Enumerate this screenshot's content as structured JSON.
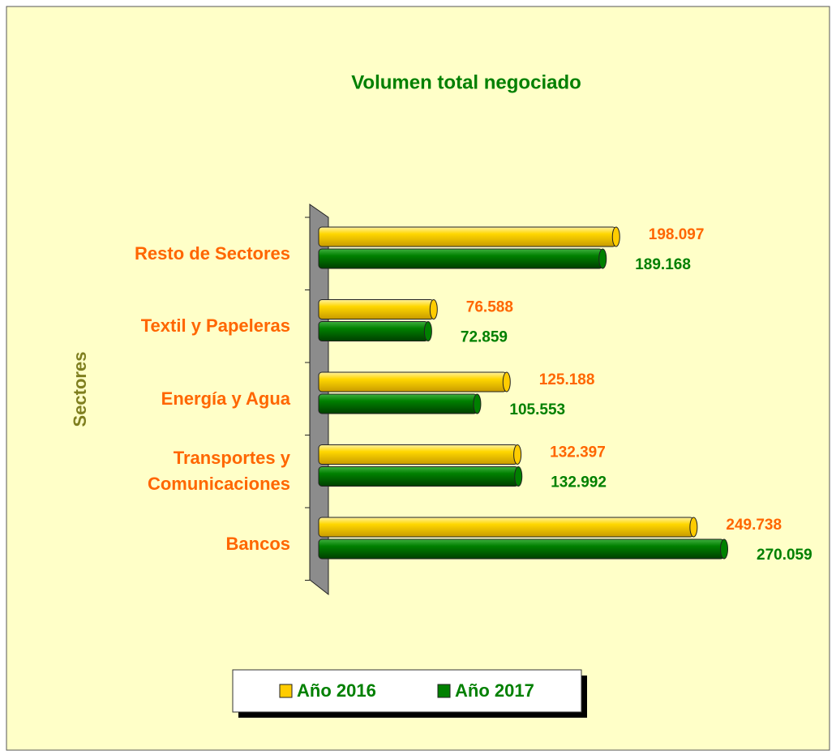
{
  "chart_data": {
    "type": "bar",
    "orientation": "horizontal",
    "title": "Volumen total negociado",
    "y_label": "Sectores",
    "categories": [
      "Resto de Sectores",
      "Textil y Papeleras",
      "Energía y Agua",
      "Transportes y Comunicaciones",
      "Bancos"
    ],
    "series": [
      {
        "name": "Año 2016",
        "color": "#ffcc00",
        "label_color": "#ff6600",
        "values": [
          198097,
          76588,
          125188,
          132397,
          249738
        ],
        "value_labels": [
          "198.097",
          "76.588",
          "125.188",
          "132.397",
          "249.738"
        ]
      },
      {
        "name": "Año 2017",
        "color": "#008000",
        "label_color": "#008000",
        "values": [
          189168,
          72859,
          105553,
          132992,
          270059
        ],
        "value_labels": [
          "189.168",
          "72.859",
          "105.553",
          "132.992",
          "270.059"
        ]
      }
    ],
    "legend": "bottom"
  }
}
